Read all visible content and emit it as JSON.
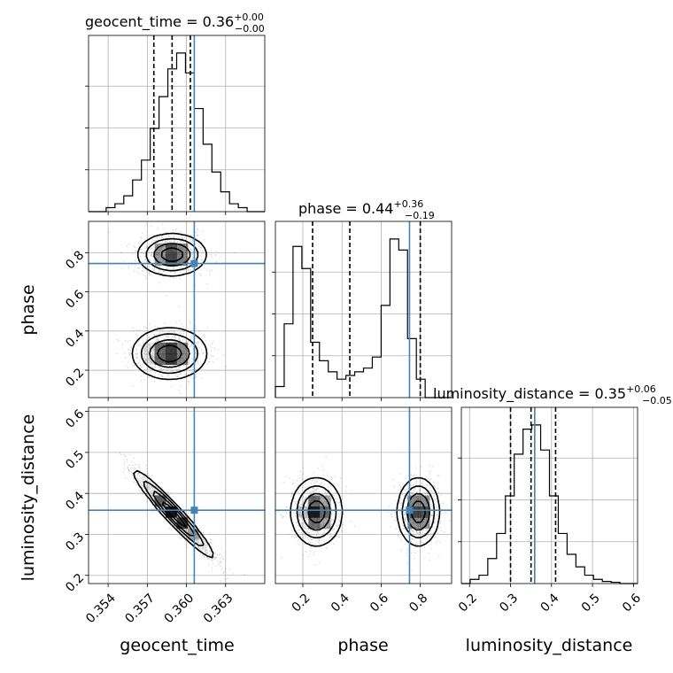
{
  "chart_data": {
    "type": "corner",
    "parameters": [
      "geocent_time",
      "phase",
      "luminosity_distance"
    ],
    "axis_labels": [
      "geocent_time",
      "phase",
      "luminosity_distance"
    ],
    "titles": [
      {
        "text": "geocent_time = 0.36",
        "sup": "+0.00",
        "sub": "−0.00"
      },
      {
        "text": "phase = 0.44",
        "sup": "+0.36",
        "sub": "−0.19"
      },
      {
        "text": "luminosity_distance = 0.35",
        "sup": "+0.06",
        "sub": "−0.05"
      }
    ],
    "ranges": [
      [
        0.3525,
        0.366
      ],
      [
        0.06,
        0.96
      ],
      [
        0.18,
        0.61
      ]
    ],
    "ticks": [
      {
        "values": [
          0.354,
          0.357,
          0.36,
          0.363
        ],
        "labels": [
          "0.354",
          "0.357",
          "0.360",
          "0.363"
        ]
      },
      {
        "values": [
          0.2,
          0.4,
          0.6,
          0.8
        ],
        "labels": [
          "0.2",
          "0.4",
          "0.6",
          "0.8"
        ]
      },
      {
        "values": [
          0.2,
          0.3,
          0.4,
          0.5,
          0.6
        ],
        "labels": [
          "0.2",
          "0.3",
          "0.4",
          "0.5",
          "0.6"
        ]
      }
    ],
    "truths": [
      0.3606,
      0.745,
      0.359
    ],
    "quantiles": [
      [
        0.3575,
        0.3589,
        0.3603
      ],
      [
        0.25,
        0.44,
        0.8
      ],
      [
        0.3,
        0.35,
        0.41
      ]
    ],
    "histograms": [
      {
        "bins": 20,
        "counts": [
          0,
          0,
          1,
          2,
          4,
          8,
          13,
          21,
          29,
          36,
          40,
          35,
          26,
          17,
          10,
          5,
          2,
          1,
          0,
          0
        ]
      },
      {
        "bins": 20,
        "counts": [
          3,
          20,
          41,
          35,
          15,
          10,
          7,
          5,
          6,
          7,
          8,
          11,
          25,
          43,
          40,
          16,
          5,
          0,
          0,
          0
        ]
      },
      {
        "bins": 20,
        "counts": [
          0,
          1,
          2,
          6,
          12,
          21,
          31,
          37,
          38,
          32,
          21,
          12,
          7,
          4,
          2,
          1,
          0.5,
          0.3,
          0,
          0
        ]
      }
    ],
    "grid": true,
    "truth_color": "#4682b4",
    "contour_color": "#000000"
  }
}
